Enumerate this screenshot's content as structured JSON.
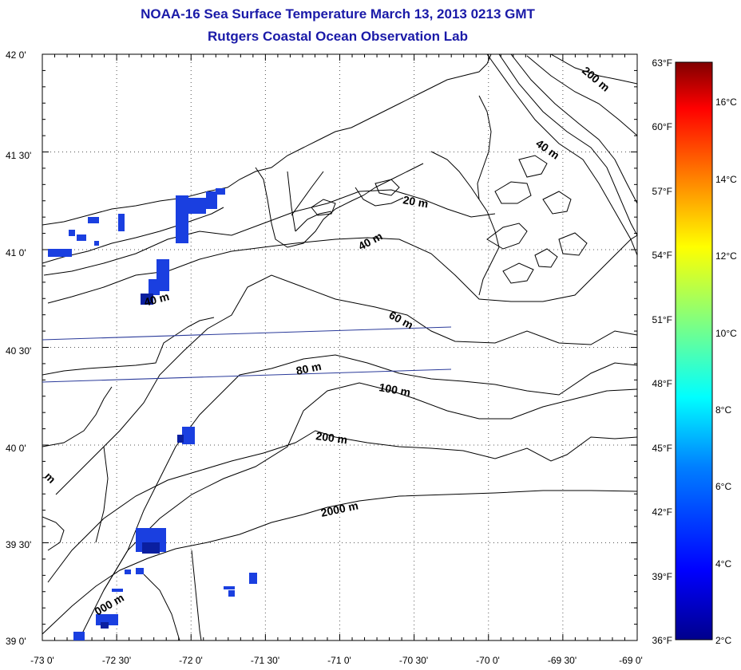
{
  "title_line1": "NOAA-16 Sea Surface Temperature March 13, 2013 0213 GMT",
  "title_line2": "Rutgers Coastal Ocean Observation Lab",
  "lat_labels": [
    "42 0'",
    "41 30'",
    "41 0'",
    "40 30'",
    "40 0'",
    "39 30'",
    "39 0'"
  ],
  "lon_labels": [
    "-73 0'",
    "-72 30'",
    "-72 0'",
    "-71 30'",
    "-71 0'",
    "-70 30'",
    "-70 0'",
    "-69 30'",
    "-69 0'"
  ],
  "fahrenheit_labels": [
    "63°F",
    "60°F",
    "57°F",
    "54°F",
    "51°F",
    "48°F",
    "45°F",
    "42°F",
    "39°F",
    "36°F"
  ],
  "fahrenheit_values": [
    63,
    60,
    57,
    54,
    51,
    48,
    45,
    42,
    39,
    36
  ],
  "celsius_labels": [
    "16°C",
    "14°C",
    "12°C",
    "10°C",
    "8°C",
    "6°C",
    "4°C",
    "2°C"
  ],
  "celsius_values": [
    16,
    14,
    12,
    10,
    8,
    6,
    4,
    2
  ],
  "contours": [
    {
      "label": "200 m",
      "angle": 40
    },
    {
      "label": "40 m",
      "angle": 35
    },
    {
      "label": "20 m",
      "angle": 10
    },
    {
      "label": "40 m",
      "angle": -28
    },
    {
      "label": "40 m",
      "angle": -15
    },
    {
      "label": "60 m",
      "angle": 28
    },
    {
      "label": "80 m",
      "angle": -12
    },
    {
      "label": "100 m",
      "angle": 10
    },
    {
      "label": "200 m",
      "angle": 8
    },
    {
      "label": "2000 m",
      "angle": -12
    },
    {
      "label": "m",
      "angle": 45
    },
    {
      "label": "000 m",
      "angle": -30
    }
  ],
  "colors": {
    "title": "#1a1aa8",
    "grid": "#555555",
    "coast": "#000000",
    "track": "#2a3a9a",
    "sst_cold": "#1a3fe0",
    "sst_cold_dark": "#0a1fa0"
  }
}
